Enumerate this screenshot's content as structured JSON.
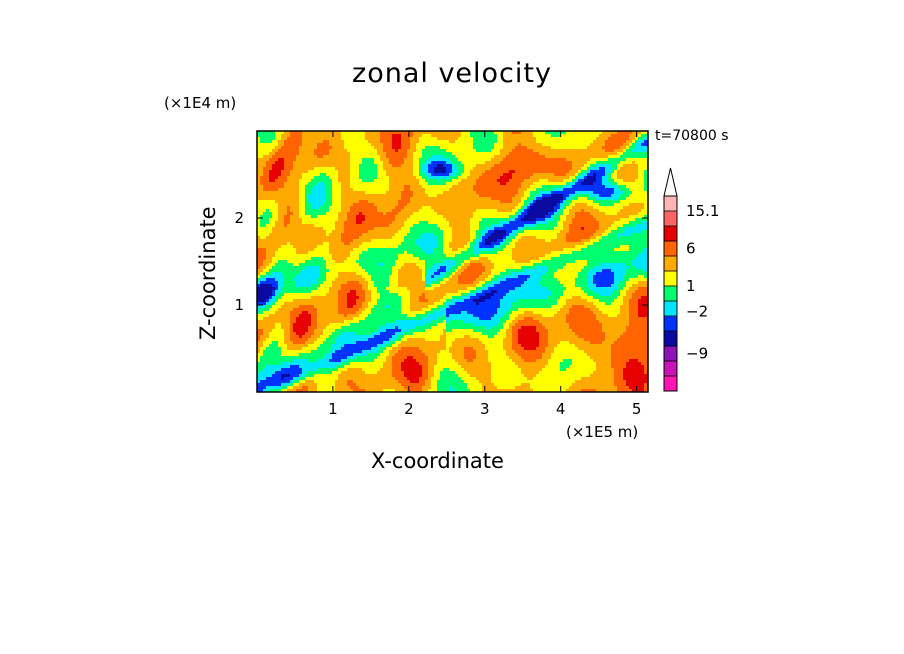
{
  "chart_data": {
    "type": "heatmap",
    "title": "zonal velocity",
    "xlabel": "X-coordinate",
    "ylabel": "Z-coordinate",
    "x_multiplier": "(×1E5 m)",
    "y_multiplier": "(×1E4 m)",
    "time_label": "t=70800 s",
    "xlim": [
      0,
      5.15
    ],
    "ylim": [
      0,
      3.0
    ],
    "x_ticks": [
      "1",
      "2",
      "3",
      "4",
      "5"
    ],
    "y_ticks": [
      "1",
      "2"
    ],
    "colorbar": {
      "tick_labels": [
        "15.1",
        "6",
        "1",
        "−2",
        "−9"
      ],
      "colors": [
        "#ff14b4",
        "#c814b4",
        "#8c14b4",
        "#0a0aa0",
        "#0032ff",
        "#00e6ff",
        "#00ff6e",
        "#ffff00",
        "#ffaa00",
        "#ff6400",
        "#e60000",
        "#ff6464",
        "#ffb4b4"
      ],
      "extend": "max"
    }
  }
}
